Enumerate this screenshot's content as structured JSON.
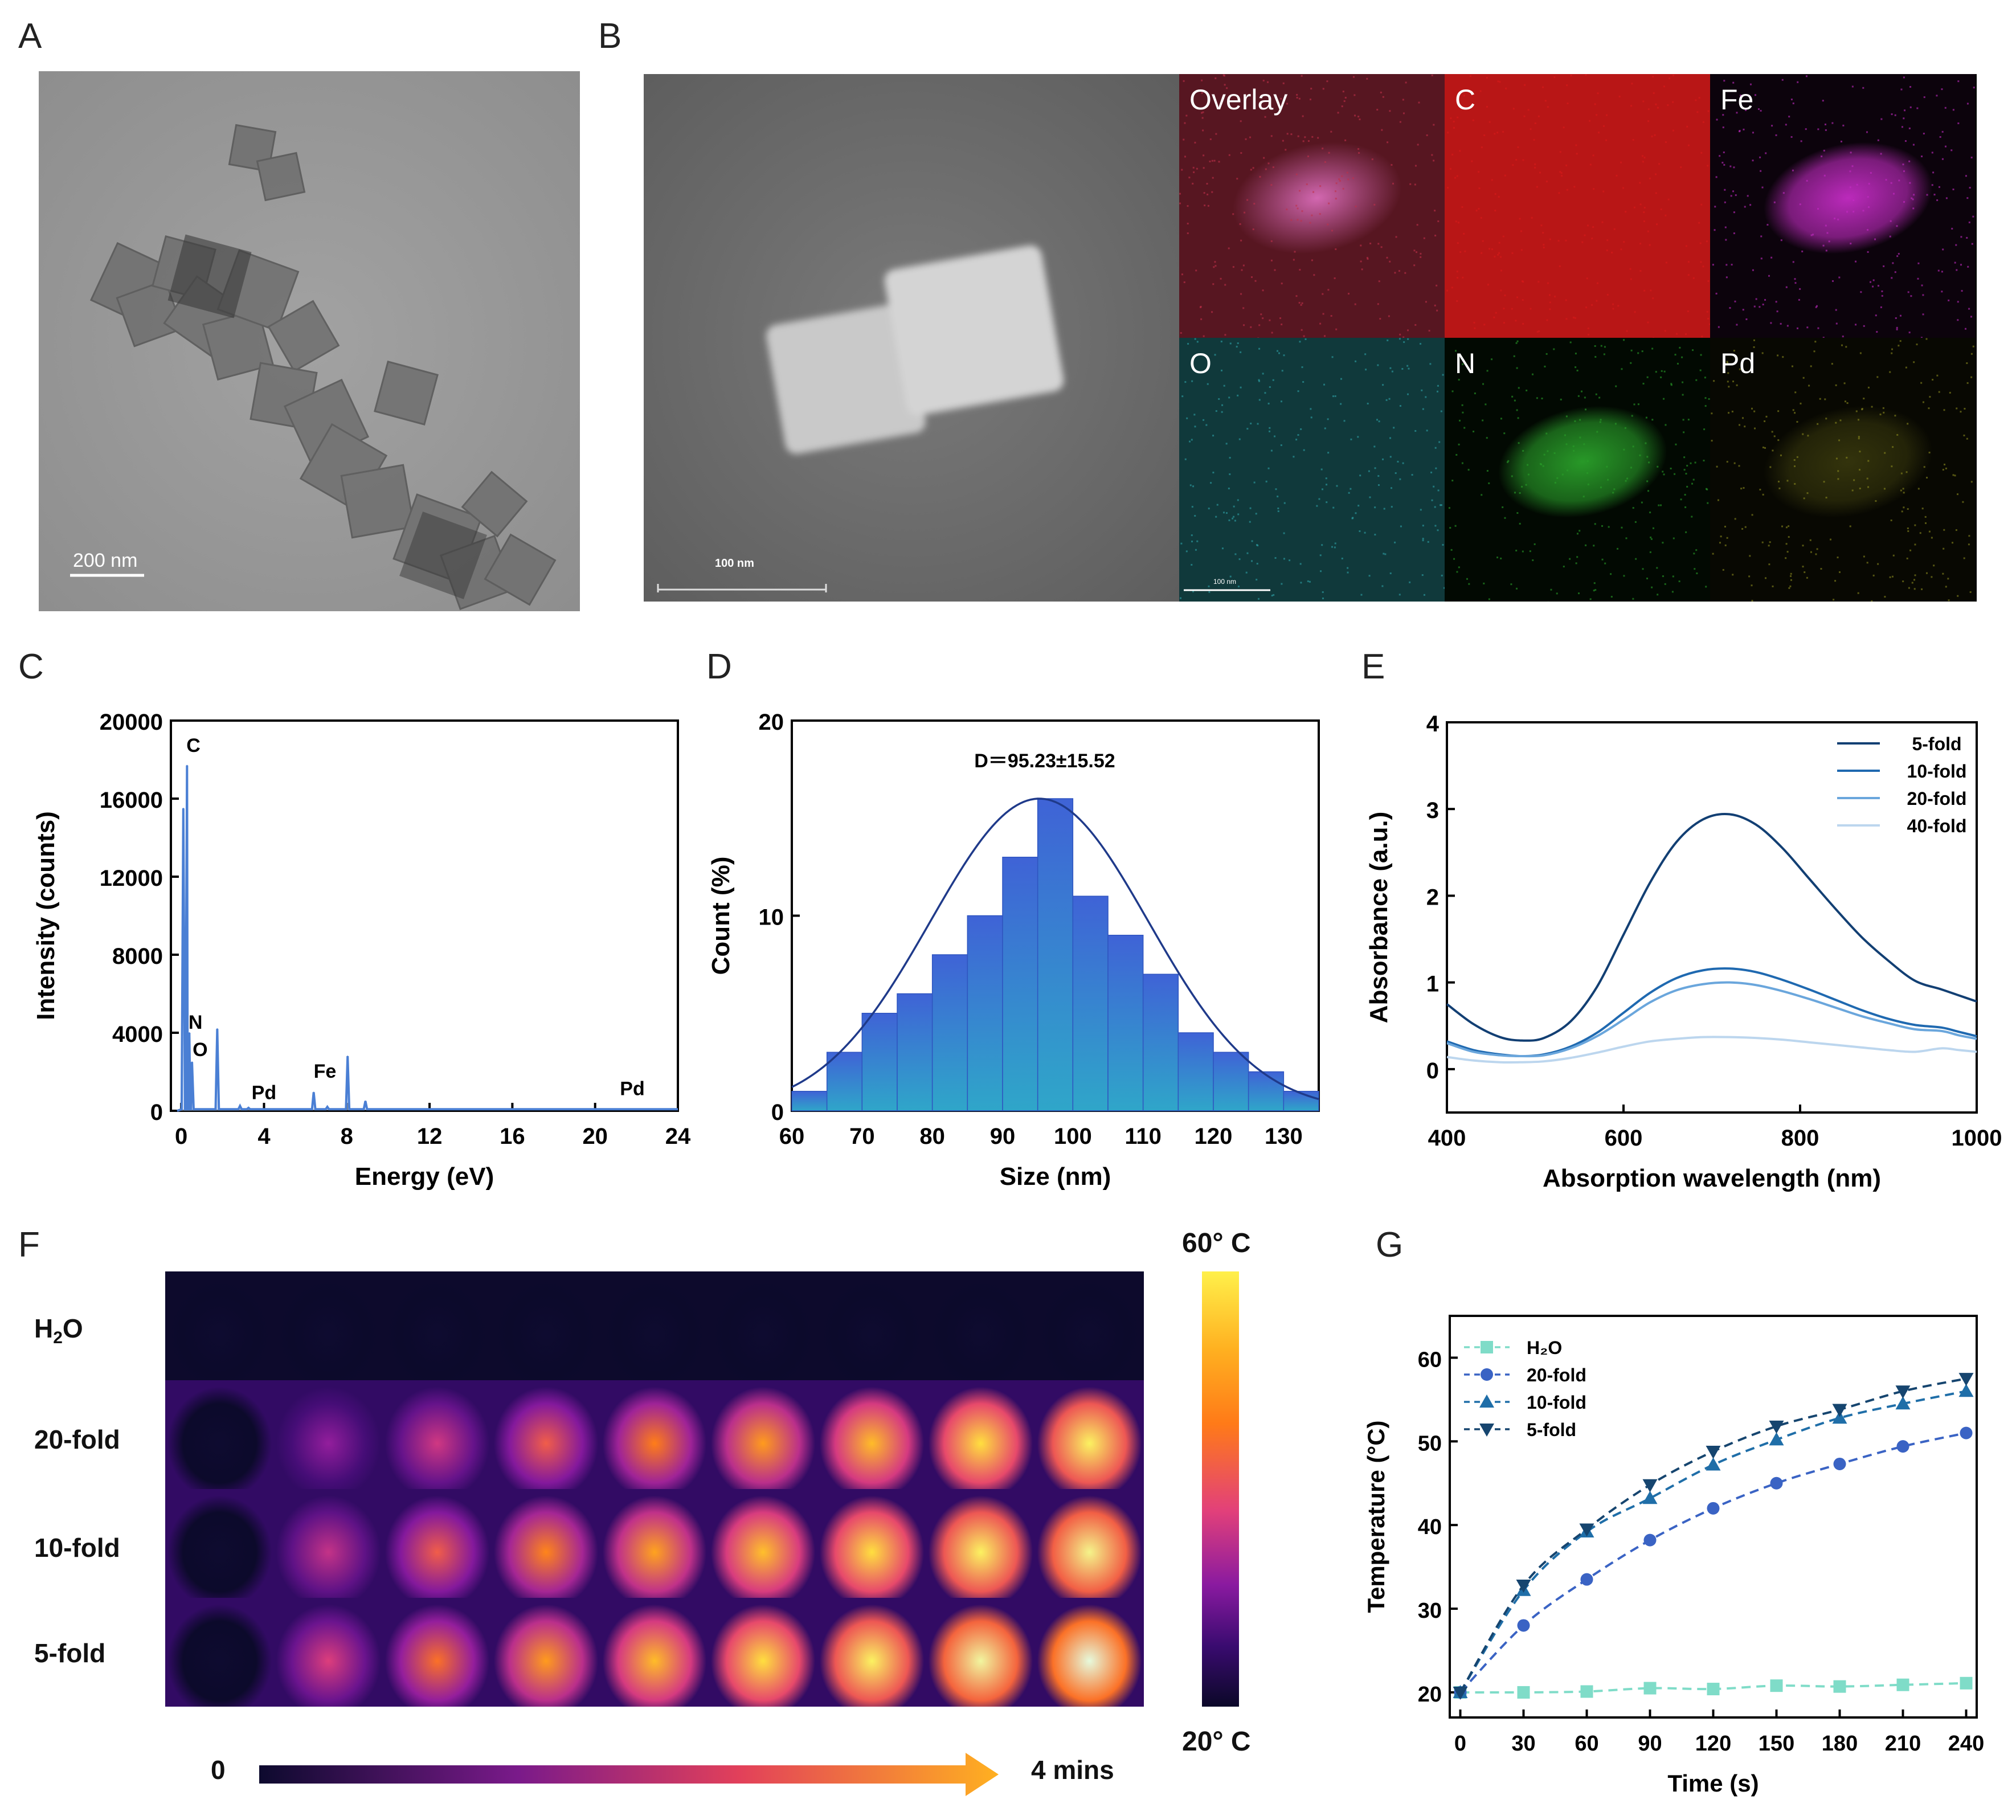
{
  "panels": {
    "A": {
      "label": "A",
      "scale_bar": "200 nm"
    },
    "B": {
      "label": "B",
      "scale_bar_main": "100 nm",
      "scale_bar_small": "100 nm",
      "maps": [
        {
          "label": "Overlay",
          "color": "#c0304a"
        },
        {
          "label": "C",
          "color": "#d81a1a"
        },
        {
          "label": "Fe",
          "color": "#c42cc4"
        },
        {
          "label": "O",
          "color": "#2fa4a8"
        },
        {
          "label": "N",
          "color": "#2aa02a"
        },
        {
          "label": "Pd",
          "color": "#8a8a20"
        }
      ]
    },
    "C": {
      "label": "C"
    },
    "D": {
      "label": "D"
    },
    "E": {
      "label": "E"
    },
    "F": {
      "label": "F",
      "rows": [
        "H2O",
        "20-fold",
        "10-fold",
        "5-fold"
      ],
      "colorbar_max": "60° C",
      "colorbar_min": "20° C",
      "time_start": "0",
      "time_end": "4 mins"
    },
    "G": {
      "label": "G"
    }
  },
  "chart_data": [
    {
      "id": "C",
      "type": "line",
      "title": "",
      "xlabel": "Energy (eV)",
      "ylabel": "Intensity (counts)",
      "xlim": [
        -0.5,
        24
      ],
      "ylim": [
        0,
        20000
      ],
      "xticks": [
        0,
        4,
        8,
        12,
        16,
        20,
        24
      ],
      "yticks": [
        0,
        4000,
        8000,
        12000,
        16000,
        20000
      ],
      "color": "#4a7fd4",
      "peaks": [
        {
          "x": 0.1,
          "y": 15500
        },
        {
          "x": 0.28,
          "y": 17700
        },
        {
          "x": 0.39,
          "y": 4000
        },
        {
          "x": 0.52,
          "y": 2500
        },
        {
          "x": 1.74,
          "y": 4200
        },
        {
          "x": 2.84,
          "y": 250
        },
        {
          "x": 3.25,
          "y": 150
        },
        {
          "x": 6.4,
          "y": 950
        },
        {
          "x": 7.06,
          "y": 200
        },
        {
          "x": 8.04,
          "y": 2800
        },
        {
          "x": 8.9,
          "y": 500
        }
      ],
      "annotations": [
        {
          "text": "C",
          "x": 0.25,
          "y": 18400
        },
        {
          "text": "N",
          "x": 0.35,
          "y": 4200
        },
        {
          "text": "O",
          "x": 0.55,
          "y": 2800
        },
        {
          "text": "Pd",
          "x": 3.4,
          "y": 600
        },
        {
          "text": "Fe",
          "x": 6.4,
          "y": 1700
        },
        {
          "text": "Pd",
          "x": 21.2,
          "y": 800
        }
      ]
    },
    {
      "id": "D",
      "type": "bar",
      "title": "",
      "xlabel": "Size (nm)",
      "ylabel": "Count (%)",
      "xlim": [
        60,
        135
      ],
      "ylim": [
        0,
        20
      ],
      "xticks": [
        60,
        70,
        80,
        90,
        100,
        110,
        120,
        130
      ],
      "yticks": [
        0,
        10,
        20
      ],
      "bin_width": 5,
      "bins": [
        60,
        65,
        70,
        75,
        80,
        85,
        90,
        95,
        100,
        105,
        110,
        115,
        120,
        125,
        130
      ],
      "values": [
        1,
        3,
        5,
        6,
        8,
        10,
        13,
        16,
        11,
        9,
        7,
        4,
        3,
        2,
        1
      ],
      "fit": {
        "mean": 95.23,
        "sd": 15.52,
        "peak": 16
      },
      "annotation": "D＝95.23±15.52"
    },
    {
      "id": "E",
      "type": "line",
      "title": "",
      "xlabel": "Absorption wavelength (nm)",
      "ylabel": "Absorbance (a.u.)",
      "xlim": [
        400,
        1000
      ],
      "ylim": [
        -0.5,
        4
      ],
      "xticks": [
        400,
        600,
        800,
        1000
      ],
      "yticks": [
        0,
        1,
        2,
        3,
        4
      ],
      "x": [
        400,
        430,
        460,
        485,
        510,
        540,
        570,
        600,
        630,
        660,
        690,
        720,
        750,
        780,
        810,
        840,
        870,
        900,
        930,
        960,
        980,
        1000
      ],
      "series": [
        {
          "name": "5-fold",
          "color": "#123f73",
          "values": [
            0.75,
            0.52,
            0.37,
            0.33,
            0.36,
            0.55,
            0.95,
            1.55,
            2.15,
            2.62,
            2.88,
            2.94,
            2.82,
            2.55,
            2.2,
            1.85,
            1.52,
            1.25,
            1.02,
            0.92,
            0.85,
            0.78
          ]
        },
        {
          "name": "10-fold",
          "color": "#1f69b0",
          "values": [
            0.32,
            0.22,
            0.17,
            0.15,
            0.17,
            0.26,
            0.42,
            0.65,
            0.88,
            1.05,
            1.14,
            1.16,
            1.12,
            1.03,
            0.92,
            0.8,
            0.68,
            0.58,
            0.51,
            0.48,
            0.43,
            0.38
          ]
        },
        {
          "name": "20-fold",
          "color": "#6aa6dc",
          "values": [
            0.3,
            0.2,
            0.16,
            0.15,
            0.16,
            0.24,
            0.38,
            0.57,
            0.77,
            0.91,
            0.98,
            1.0,
            0.97,
            0.9,
            0.81,
            0.71,
            0.61,
            0.53,
            0.46,
            0.44,
            0.39,
            0.35
          ]
        },
        {
          "name": "40-fold",
          "color": "#bcd6ee",
          "values": [
            0.14,
            0.1,
            0.08,
            0.08,
            0.09,
            0.13,
            0.19,
            0.26,
            0.32,
            0.35,
            0.37,
            0.37,
            0.36,
            0.34,
            0.31,
            0.28,
            0.25,
            0.22,
            0.2,
            0.24,
            0.22,
            0.2
          ]
        }
      ]
    },
    {
      "id": "G",
      "type": "line",
      "title": "",
      "xlabel": "Time (s)",
      "ylabel": "Temperature (°C)",
      "xlim": [
        -5,
        245
      ],
      "ylim": [
        17,
        65
      ],
      "xticks": [
        0,
        30,
        60,
        90,
        120,
        150,
        180,
        210,
        240
      ],
      "yticks": [
        20,
        30,
        40,
        50,
        60
      ],
      "x": [
        0,
        30,
        60,
        90,
        120,
        150,
        180,
        210,
        240
      ],
      "series": [
        {
          "name": "H₂O",
          "color": "#7fdcc8",
          "marker": "square",
          "values": [
            20.0,
            20.0,
            20.1,
            20.5,
            20.4,
            20.8,
            20.7,
            20.9,
            21.1
          ]
        },
        {
          "name": "20-fold",
          "color": "#3a63c4",
          "marker": "circle",
          "values": [
            20.0,
            28.0,
            33.5,
            38.2,
            42.0,
            45.0,
            47.3,
            49.4,
            51.0
          ]
        },
        {
          "name": "10-fold",
          "color": "#1f6ea8",
          "marker": "triangle-up",
          "values": [
            20.0,
            32.2,
            39.2,
            43.2,
            47.2,
            50.2,
            52.8,
            54.5,
            56.0
          ]
        },
        {
          "name": "5-fold",
          "color": "#16456f",
          "marker": "triangle-down",
          "values": [
            20.0,
            32.8,
            39.5,
            44.8,
            48.8,
            51.8,
            53.8,
            56.0,
            57.5
          ]
        }
      ]
    }
  ]
}
